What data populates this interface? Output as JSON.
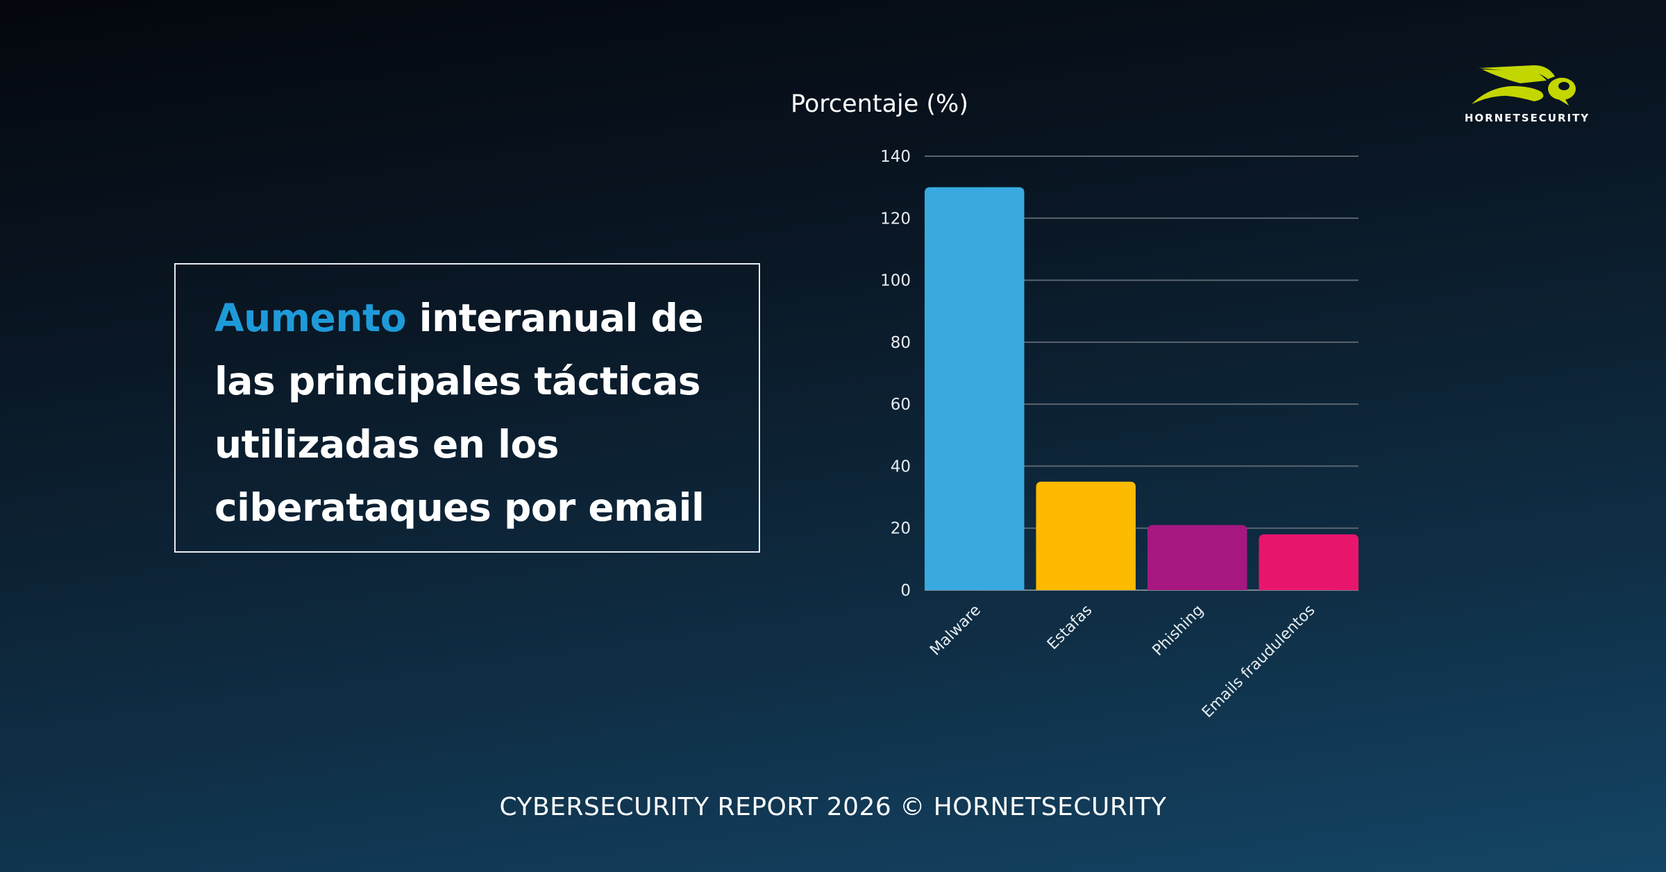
{
  "headline": {
    "accent": "Aumento",
    "rest": " interanual de las principales tácticas utilizadas en los ciberataques por email"
  },
  "footer": "CYBERSECURITY REPORT 2026 © HORNETSECURITY",
  "logo": {
    "text": "HORNETSECURITY",
    "color": "#c3d600"
  },
  "chart_data": {
    "type": "bar",
    "title": "Porcentaje (%)",
    "categories": [
      "Malware",
      "Estafas",
      "Phishing",
      "Emails fraudulentos"
    ],
    "values": [
      130,
      35,
      21,
      18
    ],
    "colors": [
      "#38aadf",
      "#fdba00",
      "#a61780",
      "#e8156d"
    ],
    "ylim": [
      0,
      140
    ],
    "yticks": [
      0,
      20,
      40,
      60,
      80,
      100,
      120,
      140
    ],
    "grid": true,
    "accent": "#1e9ad9"
  }
}
